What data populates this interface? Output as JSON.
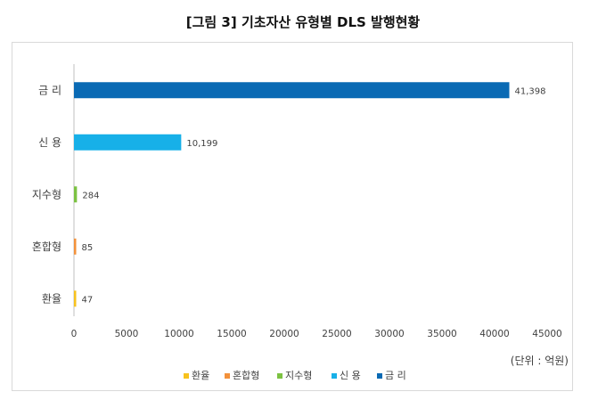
{
  "title": "[그림 3] 기초자산 유형별 DLS 발행현황",
  "unit_label": "(단위 : 억원)",
  "chart_data": {
    "type": "bar",
    "orientation": "horizontal",
    "title": "[그림 3] 기초자산 유형별 DLS 발행현황",
    "categories": [
      "금 리",
      "신 용",
      "지수형",
      "혼합형",
      "환율"
    ],
    "values": [
      41398,
      10199,
      284,
      85,
      47
    ],
    "value_labels": [
      "41,398",
      "10,199",
      "284",
      "85",
      "47"
    ],
    "colors": [
      "#0a6ab4",
      "#17b0e8",
      "#7cc242",
      "#f3913a",
      "#f7c21d"
    ],
    "xlim": [
      0,
      45000
    ],
    "xticks": [
      0,
      5000,
      10000,
      15000,
      20000,
      25000,
      30000,
      35000,
      40000,
      45000
    ],
    "xtick_labels": [
      "0",
      "5000",
      "10000",
      "15000",
      "20000",
      "25000",
      "30000",
      "35000",
      "40000",
      "45000"
    ],
    "grid": false,
    "legend_position": "bottom",
    "legend": [
      {
        "label": "환율",
        "color": "#f7c21d"
      },
      {
        "label": "혼합형",
        "color": "#f3913a"
      },
      {
        "label": "지수형",
        "color": "#7cc242"
      },
      {
        "label": "신 용",
        "color": "#17b0e8"
      },
      {
        "label": "금 리",
        "color": "#0a6ab4"
      }
    ]
  }
}
